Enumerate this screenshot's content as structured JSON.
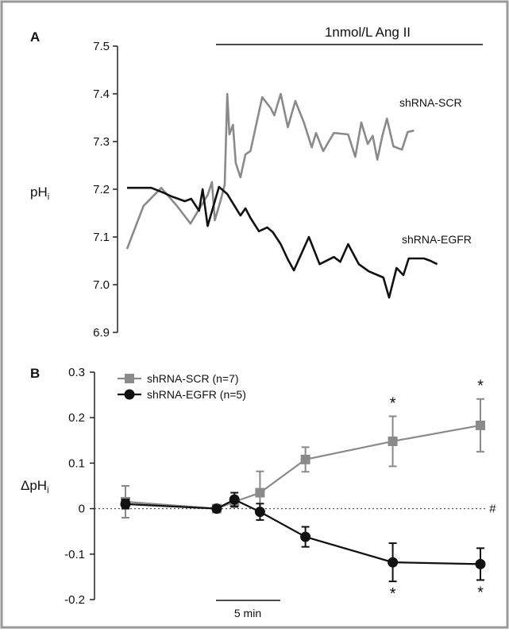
{
  "colors": {
    "scr": "#8a8a8a",
    "egfr": "#111111",
    "border": "#9a9a9a",
    "axis": "#222222"
  },
  "chart_data": [
    {
      "panel": "A",
      "type": "line",
      "ylabel": "pH",
      "ylabel_sub": "i",
      "ylim": [
        6.9,
        7.5
      ],
      "yticks": [
        "6.9",
        "7.0",
        "7.1",
        "7.2",
        "7.3",
        "7.4",
        "7.5"
      ],
      "treatment_label": "1nmol/L Ang II",
      "treatment_range_frac": [
        0.196,
        0.87
      ],
      "grid": false,
      "series": [
        {
          "name": "shRNA-SCR",
          "color": "#8a8a8a",
          "points": [
            [
              0.0,
              7.075
            ],
            [
              0.046,
              7.165
            ],
            [
              0.096,
              7.203
            ],
            [
              0.14,
              7.165
            ],
            [
              0.178,
              7.128
            ],
            [
              0.226,
              7.188
            ],
            [
              0.238,
              7.215
            ],
            [
              0.246,
              7.135
            ],
            [
              0.262,
              7.175
            ],
            [
              0.274,
              7.21
            ],
            [
              0.281,
              7.4
            ],
            [
              0.287,
              7.315
            ],
            [
              0.297,
              7.335
            ],
            [
              0.305,
              7.255
            ],
            [
              0.318,
              7.225
            ],
            [
              0.332,
              7.273
            ],
            [
              0.346,
              7.28
            ],
            [
              0.379,
              7.393
            ],
            [
              0.403,
              7.37
            ],
            [
              0.413,
              7.355
            ],
            [
              0.431,
              7.4
            ],
            [
              0.451,
              7.33
            ],
            [
              0.472,
              7.385
            ],
            [
              0.496,
              7.34
            ],
            [
              0.518,
              7.288
            ],
            [
              0.53,
              7.318
            ],
            [
              0.55,
              7.28
            ],
            [
              0.58,
              7.318
            ],
            [
              0.62,
              7.315
            ],
            [
              0.64,
              7.268
            ],
            [
              0.657,
              7.34
            ],
            [
              0.675,
              7.295
            ],
            [
              0.689,
              7.312
            ],
            [
              0.702,
              7.262
            ],
            [
              0.716,
              7.312
            ],
            [
              0.729,
              7.348
            ],
            [
              0.747,
              7.29
            ],
            [
              0.771,
              7.283
            ],
            [
              0.787,
              7.32
            ],
            [
              0.805,
              7.323
            ]
          ]
        },
        {
          "name": "shRNA-EGFR",
          "color": "#111111",
          "points": [
            [
              0.0,
              7.203
            ],
            [
              0.068,
              7.203
            ],
            [
              0.105,
              7.192
            ],
            [
              0.125,
              7.185
            ],
            [
              0.162,
              7.175
            ],
            [
              0.18,
              7.18
            ],
            [
              0.202,
              7.155
            ],
            [
              0.212,
              7.2
            ],
            [
              0.226,
              7.123
            ],
            [
              0.258,
              7.205
            ],
            [
              0.281,
              7.19
            ],
            [
              0.299,
              7.168
            ],
            [
              0.318,
              7.145
            ],
            [
              0.332,
              7.16
            ],
            [
              0.346,
              7.14
            ],
            [
              0.37,
              7.112
            ],
            [
              0.393,
              7.12
            ],
            [
              0.409,
              7.11
            ],
            [
              0.431,
              7.085
            ],
            [
              0.451,
              7.053
            ],
            [
              0.468,
              7.03
            ],
            [
              0.51,
              7.1
            ],
            [
              0.54,
              7.043
            ],
            [
              0.58,
              7.058
            ],
            [
              0.598,
              7.048
            ],
            [
              0.62,
              7.085
            ],
            [
              0.65,
              7.043
            ],
            [
              0.678,
              7.028
            ],
            [
              0.719,
              7.015
            ],
            [
              0.735,
              6.973
            ],
            [
              0.756,
              7.035
            ],
            [
              0.775,
              7.02
            ],
            [
              0.79,
              7.055
            ],
            [
              0.833,
              7.055
            ],
            [
              0.851,
              7.05
            ],
            [
              0.87,
              7.043
            ]
          ]
        }
      ]
    },
    {
      "panel": "B",
      "type": "line",
      "ylabel": "ΔpH",
      "ylabel_sub": "i",
      "ylim": [
        -0.2,
        0.3
      ],
      "yticks": [
        "-0.2",
        "-0.1",
        "0",
        "0.1",
        "0.2",
        "0.3"
      ],
      "scalebar_label": "5 min",
      "hash_label": "#",
      "grid": false,
      "series": [
        {
          "name": "shRNA-SCR (n=7)",
          "marker": "square",
          "color": "#8a8a8a",
          "x": [
            0.0,
            0.257,
            0.307,
            0.379,
            0.507,
            0.753,
            1.0
          ],
          "y": [
            0.015,
            0.0,
            0.015,
            0.035,
            0.108,
            0.148,
            0.183
          ],
          "err": [
            0.035,
            0.004,
            0.012,
            0.047,
            0.027,
            0.055,
            0.058
          ],
          "significance": [
            "",
            "",
            "",
            "",
            "",
            "*",
            "*"
          ]
        },
        {
          "name": "shRNA-EGFR (n=5)",
          "marker": "circle",
          "color": "#111111",
          "x": [
            0.0,
            0.257,
            0.307,
            0.379,
            0.507,
            0.753,
            1.0
          ],
          "y": [
            0.01,
            0.0,
            0.02,
            -0.007,
            -0.062,
            -0.118,
            -0.122
          ],
          "err": [
            0.01,
            0.003,
            0.015,
            0.018,
            0.022,
            0.042,
            0.035
          ],
          "significance": [
            "",
            "",
            "",
            "",
            "",
            "*",
            "*"
          ]
        }
      ]
    }
  ]
}
